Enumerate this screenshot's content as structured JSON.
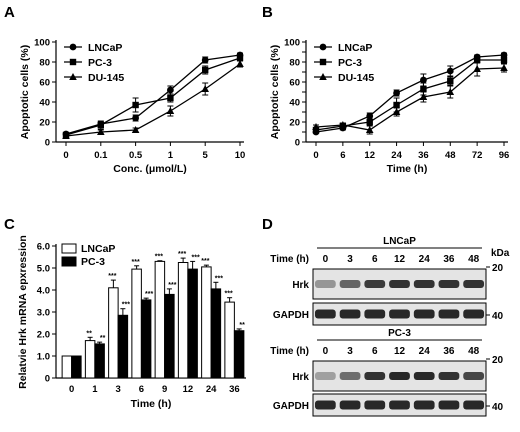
{
  "chart_data": [
    {
      "panel": "A",
      "type": "line",
      "categories": [
        "0",
        "0.1",
        "0.5",
        "1",
        "5",
        "10"
      ],
      "xlabel": "Conc. (μmol/L)",
      "ylabel": "Apoptotic cells (%)",
      "ylim": [
        0,
        100
      ],
      "yticks": [
        0,
        20,
        40,
        60,
        80,
        100
      ],
      "legend_placement": "top-left",
      "series": [
        {
          "name": "LNCaP",
          "marker": "circle",
          "values": [
            8,
            18,
            24,
            52,
            82,
            87
          ],
          "errors": [
            1,
            2,
            3,
            4,
            3,
            2
          ]
        },
        {
          "name": "PC-3",
          "marker": "square",
          "values": [
            7,
            17,
            37,
            44,
            72,
            84
          ],
          "errors": [
            1,
            4,
            7,
            4,
            4,
            2
          ]
        },
        {
          "name": "DU-145",
          "marker": "triangle",
          "values": [
            6,
            10,
            12,
            31,
            53,
            78
          ],
          "errors": [
            1,
            2,
            2,
            5,
            6,
            3
          ]
        }
      ]
    },
    {
      "panel": "B",
      "type": "line",
      "categories": [
        "0",
        "6",
        "12",
        "24",
        "36",
        "48",
        "72",
        "96"
      ],
      "xlabel": "Time (h)",
      "ylabel": "Apoptotic cells (%)",
      "ylim": [
        0,
        100
      ],
      "yticks": [
        0,
        10,
        20,
        30,
        40,
        50,
        60,
        70,
        80,
        90,
        100
      ],
      "legend_placement": "top-left",
      "series": [
        {
          "name": "LNCaP",
          "marker": "circle",
          "values": [
            10,
            14,
            26,
            49,
            62,
            71,
            85,
            87
          ],
          "errors": [
            1,
            2,
            3,
            3,
            6,
            5,
            2,
            2
          ]
        },
        {
          "name": "PC-3",
          "marker": "square",
          "values": [
            12,
            16,
            20,
            37,
            53,
            61,
            82,
            82
          ],
          "errors": [
            2,
            2,
            3,
            7,
            6,
            4,
            3,
            3
          ]
        },
        {
          "name": "DU-145",
          "marker": "triangle",
          "values": [
            15,
            17,
            12,
            30,
            45,
            50,
            73,
            74
          ],
          "errors": [
            2,
            2,
            4,
            4,
            5,
            6,
            7,
            4
          ]
        }
      ]
    },
    {
      "panel": "C",
      "type": "bar",
      "categories": [
        "0",
        "1",
        "3",
        "6",
        "9",
        "12",
        "24",
        "36"
      ],
      "xlabel": "Time (h)",
      "ylabel": "Relatvie Hrk mRNA epxression",
      "ylim": [
        0,
        6
      ],
      "yticks": [
        "0",
        "1.0",
        "2.0",
        "3.0",
        "4.0",
        "5.0",
        "6.0"
      ],
      "legend_placement": "top-left",
      "series": [
        {
          "name": "LNCaP",
          "fill": "white",
          "values": [
            1.0,
            1.7,
            4.1,
            4.95,
            5.3,
            5.25,
            5.05,
            3.45
          ],
          "errors": [
            0,
            0.15,
            0.35,
            0.15,
            0.03,
            0.2,
            0.08,
            0.2
          ],
          "labels": [
            "",
            "**",
            "***",
            "***",
            "***",
            "***",
            "***",
            "***"
          ]
        },
        {
          "name": "PC-3",
          "fill": "black",
          "values": [
            1.0,
            1.55,
            2.85,
            3.55,
            3.8,
            4.95,
            4.05,
            2.15
          ],
          "errors": [
            0,
            0.08,
            0.3,
            0.08,
            0.25,
            0.35,
            0.3,
            0.08
          ],
          "labels": [
            "",
            "**",
            "***",
            "***",
            "***",
            "***",
            "***",
            "**"
          ]
        }
      ]
    }
  ],
  "figure": {
    "letters": [
      "A",
      "B",
      "C",
      "D"
    ],
    "legend": [
      "LNCaP",
      "PC-3",
      "DU-145"
    ],
    "legend_c": [
      "LNCaP",
      "PC-3"
    ]
  },
  "blot": {
    "kda_label": "kDa",
    "time_label": "Time (h)",
    "times": [
      "0",
      "3",
      "6",
      "12",
      "24",
      "36",
      "48"
    ],
    "markers": [
      "20",
      "40"
    ],
    "panels": [
      {
        "cell": "LNCaP",
        "rows": [
          {
            "label": "Hrk",
            "intensity": [
              0.35,
              0.6,
              0.8,
              0.85,
              0.85,
              0.85,
              0.85
            ]
          },
          {
            "label": "GAPDH",
            "intensity": [
              0.9,
              0.9,
              0.9,
              0.9,
              0.9,
              0.9,
              0.9
            ]
          }
        ]
      },
      {
        "cell": "PC-3",
        "rows": [
          {
            "label": "Hrk",
            "intensity": [
              0.3,
              0.55,
              0.85,
              0.9,
              0.9,
              0.85,
              0.75
            ]
          },
          {
            "label": "GAPDH",
            "intensity": [
              0.9,
              0.9,
              0.9,
              0.9,
              0.9,
              0.9,
              0.9
            ]
          }
        ]
      }
    ]
  }
}
